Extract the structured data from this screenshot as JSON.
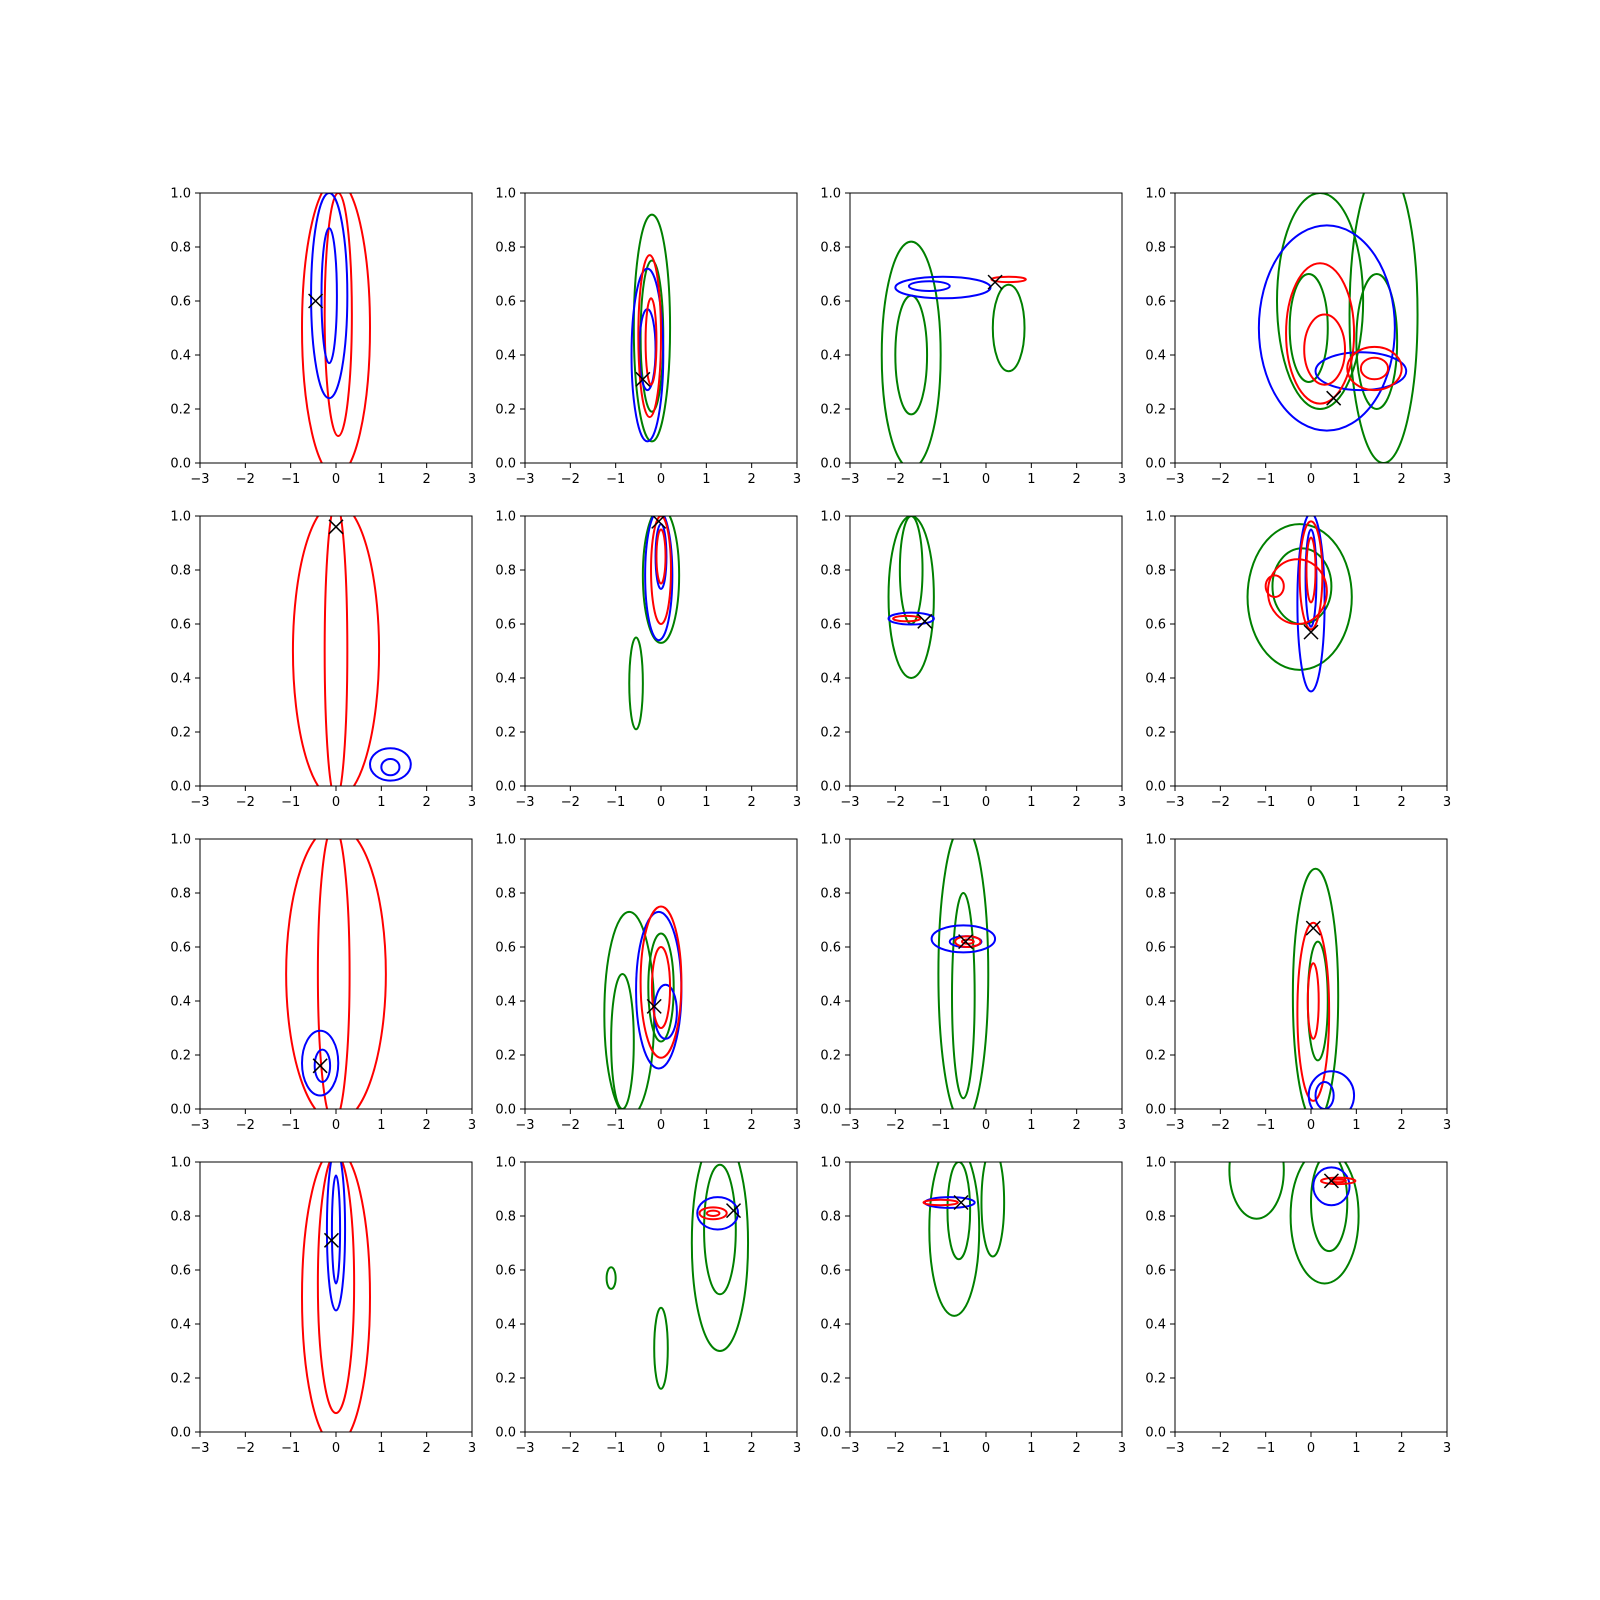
{
  "colors": {
    "red": "#ff0000",
    "blue": "#0000ff",
    "green": "#008000",
    "marker": "#000000",
    "axes": "#000000"
  },
  "chart_data": {
    "type": "contour-grid",
    "rows": 4,
    "cols": 4,
    "shared_axes": {
      "xlim": [
        -3,
        3
      ],
      "ylim": [
        0,
        1
      ],
      "x_ticks": [
        -3,
        -2,
        -1,
        0,
        1,
        2,
        3
      ],
      "y_ticks": [
        0.0,
        0.2,
        0.4,
        0.6,
        0.8,
        1.0
      ],
      "x_tick_labels": [
        "−3",
        "−2",
        "−1",
        "0",
        "1",
        "2",
        "3"
      ],
      "y_tick_labels": [
        "0.0",
        "0.2",
        "0.4",
        "0.6",
        "0.8",
        "1.0"
      ]
    },
    "panels": [
      {
        "row": 0,
        "col": 0,
        "marker": {
          "x": -0.45,
          "y": 0.6
        },
        "contours": [
          {
            "color": "red",
            "cx": 0.0,
            "cy": 0.5,
            "rx": 0.75,
            "ry": 0.55
          },
          {
            "color": "red",
            "cx": 0.05,
            "cy": 0.55,
            "rx": 0.3,
            "ry": 0.45
          },
          {
            "color": "blue",
            "cx": -0.15,
            "cy": 0.62,
            "rx": 0.4,
            "ry": 0.38
          },
          {
            "color": "blue",
            "cx": -0.15,
            "cy": 0.62,
            "rx": 0.17,
            "ry": 0.25
          }
        ]
      },
      {
        "row": 0,
        "col": 1,
        "marker": {
          "x": -0.4,
          "y": 0.31
        },
        "contours": [
          {
            "color": "green",
            "cx": -0.2,
            "cy": 0.5,
            "rx": 0.4,
            "ry": 0.42
          },
          {
            "color": "green",
            "cx": -0.2,
            "cy": 0.47,
            "rx": 0.25,
            "ry": 0.28
          },
          {
            "color": "blue",
            "cx": -0.3,
            "cy": 0.4,
            "rx": 0.35,
            "ry": 0.32
          },
          {
            "color": "blue",
            "cx": -0.3,
            "cy": 0.42,
            "rx": 0.18,
            "ry": 0.15
          },
          {
            "color": "red",
            "cx": -0.25,
            "cy": 0.47,
            "rx": 0.25,
            "ry": 0.3
          },
          {
            "color": "red",
            "cx": -0.22,
            "cy": 0.45,
            "rx": 0.12,
            "ry": 0.16
          }
        ]
      },
      {
        "row": 0,
        "col": 2,
        "marker": {
          "x": 0.2,
          "y": 0.67
        },
        "contours": [
          {
            "color": "green",
            "cx": -1.65,
            "cy": 0.4,
            "rx": 0.65,
            "ry": 0.42
          },
          {
            "color": "green",
            "cx": -1.65,
            "cy": 0.4,
            "rx": 0.35,
            "ry": 0.22
          },
          {
            "color": "green",
            "cx": 0.5,
            "cy": 0.5,
            "rx": 0.35,
            "ry": 0.16
          },
          {
            "color": "blue",
            "cx": -0.95,
            "cy": 0.65,
            "rx": 1.05,
            "ry": 0.04
          },
          {
            "color": "blue",
            "cx": -1.25,
            "cy": 0.655,
            "rx": 0.45,
            "ry": 0.018
          },
          {
            "color": "red",
            "cx": 0.5,
            "cy": 0.68,
            "rx": 0.38,
            "ry": 0.01
          }
        ]
      },
      {
        "row": 0,
        "col": 3,
        "marker": {
          "x": 0.5,
          "y": 0.24
        },
        "contours": [
          {
            "color": "green",
            "cx": 0.2,
            "cy": 0.6,
            "rx": 0.95,
            "ry": 0.4
          },
          {
            "color": "green",
            "cx": 1.6,
            "cy": 0.55,
            "rx": 0.75,
            "ry": 0.55
          },
          {
            "color": "green",
            "cx": -0.05,
            "cy": 0.5,
            "rx": 0.42,
            "ry": 0.2
          },
          {
            "color": "green",
            "cx": 1.45,
            "cy": 0.45,
            "rx": 0.45,
            "ry": 0.25
          },
          {
            "color": "blue",
            "cx": 0.35,
            "cy": 0.5,
            "rx": 1.5,
            "ry": 0.38
          },
          {
            "color": "blue",
            "cx": 1.1,
            "cy": 0.34,
            "rx": 1.0,
            "ry": 0.07
          },
          {
            "color": "red",
            "cx": 0.2,
            "cy": 0.48,
            "rx": 0.75,
            "ry": 0.26
          },
          {
            "color": "red",
            "cx": 0.3,
            "cy": 0.42,
            "rx": 0.45,
            "ry": 0.13
          },
          {
            "color": "red",
            "cx": 1.4,
            "cy": 0.35,
            "rx": 0.6,
            "ry": 0.08
          },
          {
            "color": "red",
            "cx": 1.4,
            "cy": 0.35,
            "rx": 0.3,
            "ry": 0.04
          }
        ]
      },
      {
        "row": 1,
        "col": 0,
        "marker": {
          "x": 0.0,
          "y": 0.96
        },
        "contours": [
          {
            "color": "red",
            "cx": 0.0,
            "cy": 0.5,
            "rx": 0.95,
            "ry": 0.55
          },
          {
            "color": "red",
            "cx": 0.0,
            "cy": 0.5,
            "rx": 0.25,
            "ry": 0.55
          },
          {
            "color": "blue",
            "cx": 1.2,
            "cy": 0.08,
            "rx": 0.45,
            "ry": 0.06
          },
          {
            "color": "blue",
            "cx": 1.2,
            "cy": 0.07,
            "rx": 0.2,
            "ry": 0.03
          }
        ]
      },
      {
        "row": 1,
        "col": 1,
        "marker": {
          "x": -0.05,
          "y": 0.98
        },
        "contours": [
          {
            "color": "green",
            "cx": 0.0,
            "cy": 0.78,
            "rx": 0.4,
            "ry": 0.25
          },
          {
            "color": "green",
            "cx": -0.55,
            "cy": 0.38,
            "rx": 0.15,
            "ry": 0.17
          },
          {
            "color": "blue",
            "cx": -0.05,
            "cy": 0.78,
            "rx": 0.3,
            "ry": 0.24
          },
          {
            "color": "blue",
            "cx": 0.0,
            "cy": 0.85,
            "rx": 0.12,
            "ry": 0.12
          },
          {
            "color": "red",
            "cx": 0.0,
            "cy": 0.8,
            "rx": 0.22,
            "ry": 0.2
          },
          {
            "color": "red",
            "cx": 0.0,
            "cy": 0.85,
            "rx": 0.1,
            "ry": 0.1
          }
        ]
      },
      {
        "row": 1,
        "col": 2,
        "marker": {
          "x": -1.35,
          "y": 0.61
        },
        "contours": [
          {
            "color": "green",
            "cx": -1.65,
            "cy": 0.7,
            "rx": 0.5,
            "ry": 0.3
          },
          {
            "color": "green",
            "cx": -1.65,
            "cy": 0.8,
            "rx": 0.25,
            "ry": 0.2
          },
          {
            "color": "blue",
            "cx": -1.65,
            "cy": 0.62,
            "rx": 0.5,
            "ry": 0.022
          },
          {
            "color": "red",
            "cx": -1.75,
            "cy": 0.62,
            "rx": 0.3,
            "ry": 0.01
          }
        ]
      },
      {
        "row": 1,
        "col": 3,
        "marker": {
          "x": 0.0,
          "y": 0.57
        },
        "contours": [
          {
            "color": "green",
            "cx": -0.25,
            "cy": 0.7,
            "rx": 1.15,
            "ry": 0.27
          },
          {
            "color": "green",
            "cx": -0.2,
            "cy": 0.74,
            "rx": 0.65,
            "ry": 0.14
          },
          {
            "color": "blue",
            "cx": 0.0,
            "cy": 0.68,
            "rx": 0.3,
            "ry": 0.33
          },
          {
            "color": "blue",
            "cx": 0.0,
            "cy": 0.77,
            "rx": 0.12,
            "ry": 0.18
          },
          {
            "color": "red",
            "cx": -0.3,
            "cy": 0.72,
            "rx": 0.65,
            "ry": 0.12
          },
          {
            "color": "red",
            "cx": -0.8,
            "cy": 0.74,
            "rx": 0.2,
            "ry": 0.04
          },
          {
            "color": "red",
            "cx": 0.0,
            "cy": 0.78,
            "rx": 0.25,
            "ry": 0.2
          },
          {
            "color": "red",
            "cx": 0.0,
            "cy": 0.8,
            "rx": 0.1,
            "ry": 0.12
          }
        ]
      },
      {
        "row": 2,
        "col": 0,
        "marker": {
          "x": -0.35,
          "y": 0.16
        },
        "contours": [
          {
            "color": "red",
            "cx": 0.0,
            "cy": 0.5,
            "rx": 1.1,
            "ry": 0.55
          },
          {
            "color": "red",
            "cx": -0.05,
            "cy": 0.5,
            "rx": 0.35,
            "ry": 0.55
          },
          {
            "color": "blue",
            "cx": -0.35,
            "cy": 0.17,
            "rx": 0.4,
            "ry": 0.12
          },
          {
            "color": "blue",
            "cx": -0.3,
            "cy": 0.16,
            "rx": 0.17,
            "ry": 0.06
          }
        ]
      },
      {
        "row": 2,
        "col": 1,
        "marker": {
          "x": -0.15,
          "y": 0.38
        },
        "contours": [
          {
            "color": "green",
            "cx": -0.7,
            "cy": 0.35,
            "rx": 0.55,
            "ry": 0.38
          },
          {
            "color": "green",
            "cx": -0.85,
            "cy": 0.25,
            "rx": 0.25,
            "ry": 0.25
          },
          {
            "color": "green",
            "cx": 0.0,
            "cy": 0.45,
            "rx": 0.28,
            "ry": 0.2
          },
          {
            "color": "blue",
            "cx": -0.05,
            "cy": 0.44,
            "rx": 0.5,
            "ry": 0.29
          },
          {
            "color": "blue",
            "cx": 0.1,
            "cy": 0.36,
            "rx": 0.25,
            "ry": 0.1
          },
          {
            "color": "red",
            "cx": 0.0,
            "cy": 0.47,
            "rx": 0.45,
            "ry": 0.28
          },
          {
            "color": "red",
            "cx": 0.0,
            "cy": 0.45,
            "rx": 0.2,
            "ry": 0.15
          }
        ]
      },
      {
        "row": 2,
        "col": 2,
        "marker": {
          "x": -0.45,
          "y": 0.62
        },
        "contours": [
          {
            "color": "green",
            "cx": -0.5,
            "cy": 0.5,
            "rx": 0.55,
            "ry": 0.55
          },
          {
            "color": "green",
            "cx": -0.5,
            "cy": 0.42,
            "rx": 0.25,
            "ry": 0.38
          },
          {
            "color": "blue",
            "cx": -0.5,
            "cy": 0.63,
            "rx": 0.7,
            "ry": 0.05
          },
          {
            "color": "blue",
            "cx": -0.45,
            "cy": 0.62,
            "rx": 0.35,
            "ry": 0.02
          },
          {
            "color": "red",
            "cx": -0.4,
            "cy": 0.62,
            "rx": 0.28,
            "ry": 0.02
          },
          {
            "color": "red",
            "cx": -0.4,
            "cy": 0.62,
            "rx": 0.13,
            "ry": 0.008
          }
        ]
      },
      {
        "row": 2,
        "col": 3,
        "marker": {
          "x": 0.05,
          "y": 0.67
        },
        "contours": [
          {
            "color": "green",
            "cx": 0.1,
            "cy": 0.42,
            "rx": 0.5,
            "ry": 0.47
          },
          {
            "color": "green",
            "cx": 0.15,
            "cy": 0.4,
            "rx": 0.22,
            "ry": 0.22
          },
          {
            "color": "red",
            "cx": 0.05,
            "cy": 0.36,
            "rx": 0.35,
            "ry": 0.33
          },
          {
            "color": "red",
            "cx": 0.05,
            "cy": 0.4,
            "rx": 0.12,
            "ry": 0.14
          },
          {
            "color": "blue",
            "cx": 0.45,
            "cy": 0.05,
            "rx": 0.5,
            "ry": 0.09
          },
          {
            "color": "blue",
            "cx": 0.3,
            "cy": 0.05,
            "rx": 0.2,
            "ry": 0.05
          }
        ]
      },
      {
        "row": 3,
        "col": 0,
        "marker": {
          "x": -0.1,
          "y": 0.71
        },
        "contours": [
          {
            "color": "red",
            "cx": 0.0,
            "cy": 0.5,
            "rx": 0.75,
            "ry": 0.55
          },
          {
            "color": "red",
            "cx": 0.0,
            "cy": 0.55,
            "rx": 0.4,
            "ry": 0.48
          },
          {
            "color": "blue",
            "cx": 0.0,
            "cy": 0.75,
            "rx": 0.2,
            "ry": 0.3
          },
          {
            "color": "blue",
            "cx": 0.0,
            "cy": 0.75,
            "rx": 0.09,
            "ry": 0.2
          }
        ]
      },
      {
        "row": 3,
        "col": 1,
        "marker": {
          "x": 1.6,
          "y": 0.82
        },
        "contours": [
          {
            "color": "green",
            "cx": 1.3,
            "cy": 0.7,
            "rx": 0.62,
            "ry": 0.4
          },
          {
            "color": "green",
            "cx": 1.3,
            "cy": 0.75,
            "rx": 0.35,
            "ry": 0.24
          },
          {
            "color": "green",
            "cx": -1.1,
            "cy": 0.57,
            "rx": 0.1,
            "ry": 0.04
          },
          {
            "color": "green",
            "cx": 0.0,
            "cy": 0.31,
            "rx": 0.15,
            "ry": 0.15
          },
          {
            "color": "blue",
            "cx": 1.25,
            "cy": 0.81,
            "rx": 0.45,
            "ry": 0.06
          },
          {
            "color": "red",
            "cx": 1.15,
            "cy": 0.81,
            "rx": 0.3,
            "ry": 0.022
          },
          {
            "color": "red",
            "cx": 1.15,
            "cy": 0.81,
            "rx": 0.14,
            "ry": 0.01
          }
        ]
      },
      {
        "row": 3,
        "col": 2,
        "marker": {
          "x": -0.55,
          "y": 0.85
        },
        "contours": [
          {
            "color": "green",
            "cx": -0.7,
            "cy": 0.75,
            "rx": 0.55,
            "ry": 0.32
          },
          {
            "color": "green",
            "cx": -0.6,
            "cy": 0.82,
            "rx": 0.25,
            "ry": 0.18
          },
          {
            "color": "green",
            "cx": 0.15,
            "cy": 0.85,
            "rx": 0.25,
            "ry": 0.2
          },
          {
            "color": "blue",
            "cx": -0.8,
            "cy": 0.85,
            "rx": 0.55,
            "ry": 0.02
          },
          {
            "color": "red",
            "cx": -1.0,
            "cy": 0.85,
            "rx": 0.38,
            "ry": 0.01
          }
        ]
      },
      {
        "row": 3,
        "col": 3,
        "marker": {
          "x": 0.45,
          "y": 0.93
        },
        "contours": [
          {
            "color": "green",
            "cx": 0.3,
            "cy": 0.8,
            "rx": 0.75,
            "ry": 0.25
          },
          {
            "color": "green",
            "cx": 0.4,
            "cy": 0.85,
            "rx": 0.4,
            "ry": 0.18
          },
          {
            "color": "green",
            "cx": -1.2,
            "cy": 0.97,
            "rx": 0.6,
            "ry": 0.18
          },
          {
            "color": "blue",
            "cx": 0.45,
            "cy": 0.91,
            "rx": 0.4,
            "ry": 0.07
          },
          {
            "color": "red",
            "cx": 0.6,
            "cy": 0.93,
            "rx": 0.38,
            "ry": 0.012
          },
          {
            "color": "red",
            "cx": 0.6,
            "cy": 0.93,
            "rx": 0.17,
            "ry": 0.005
          }
        ]
      }
    ]
  }
}
